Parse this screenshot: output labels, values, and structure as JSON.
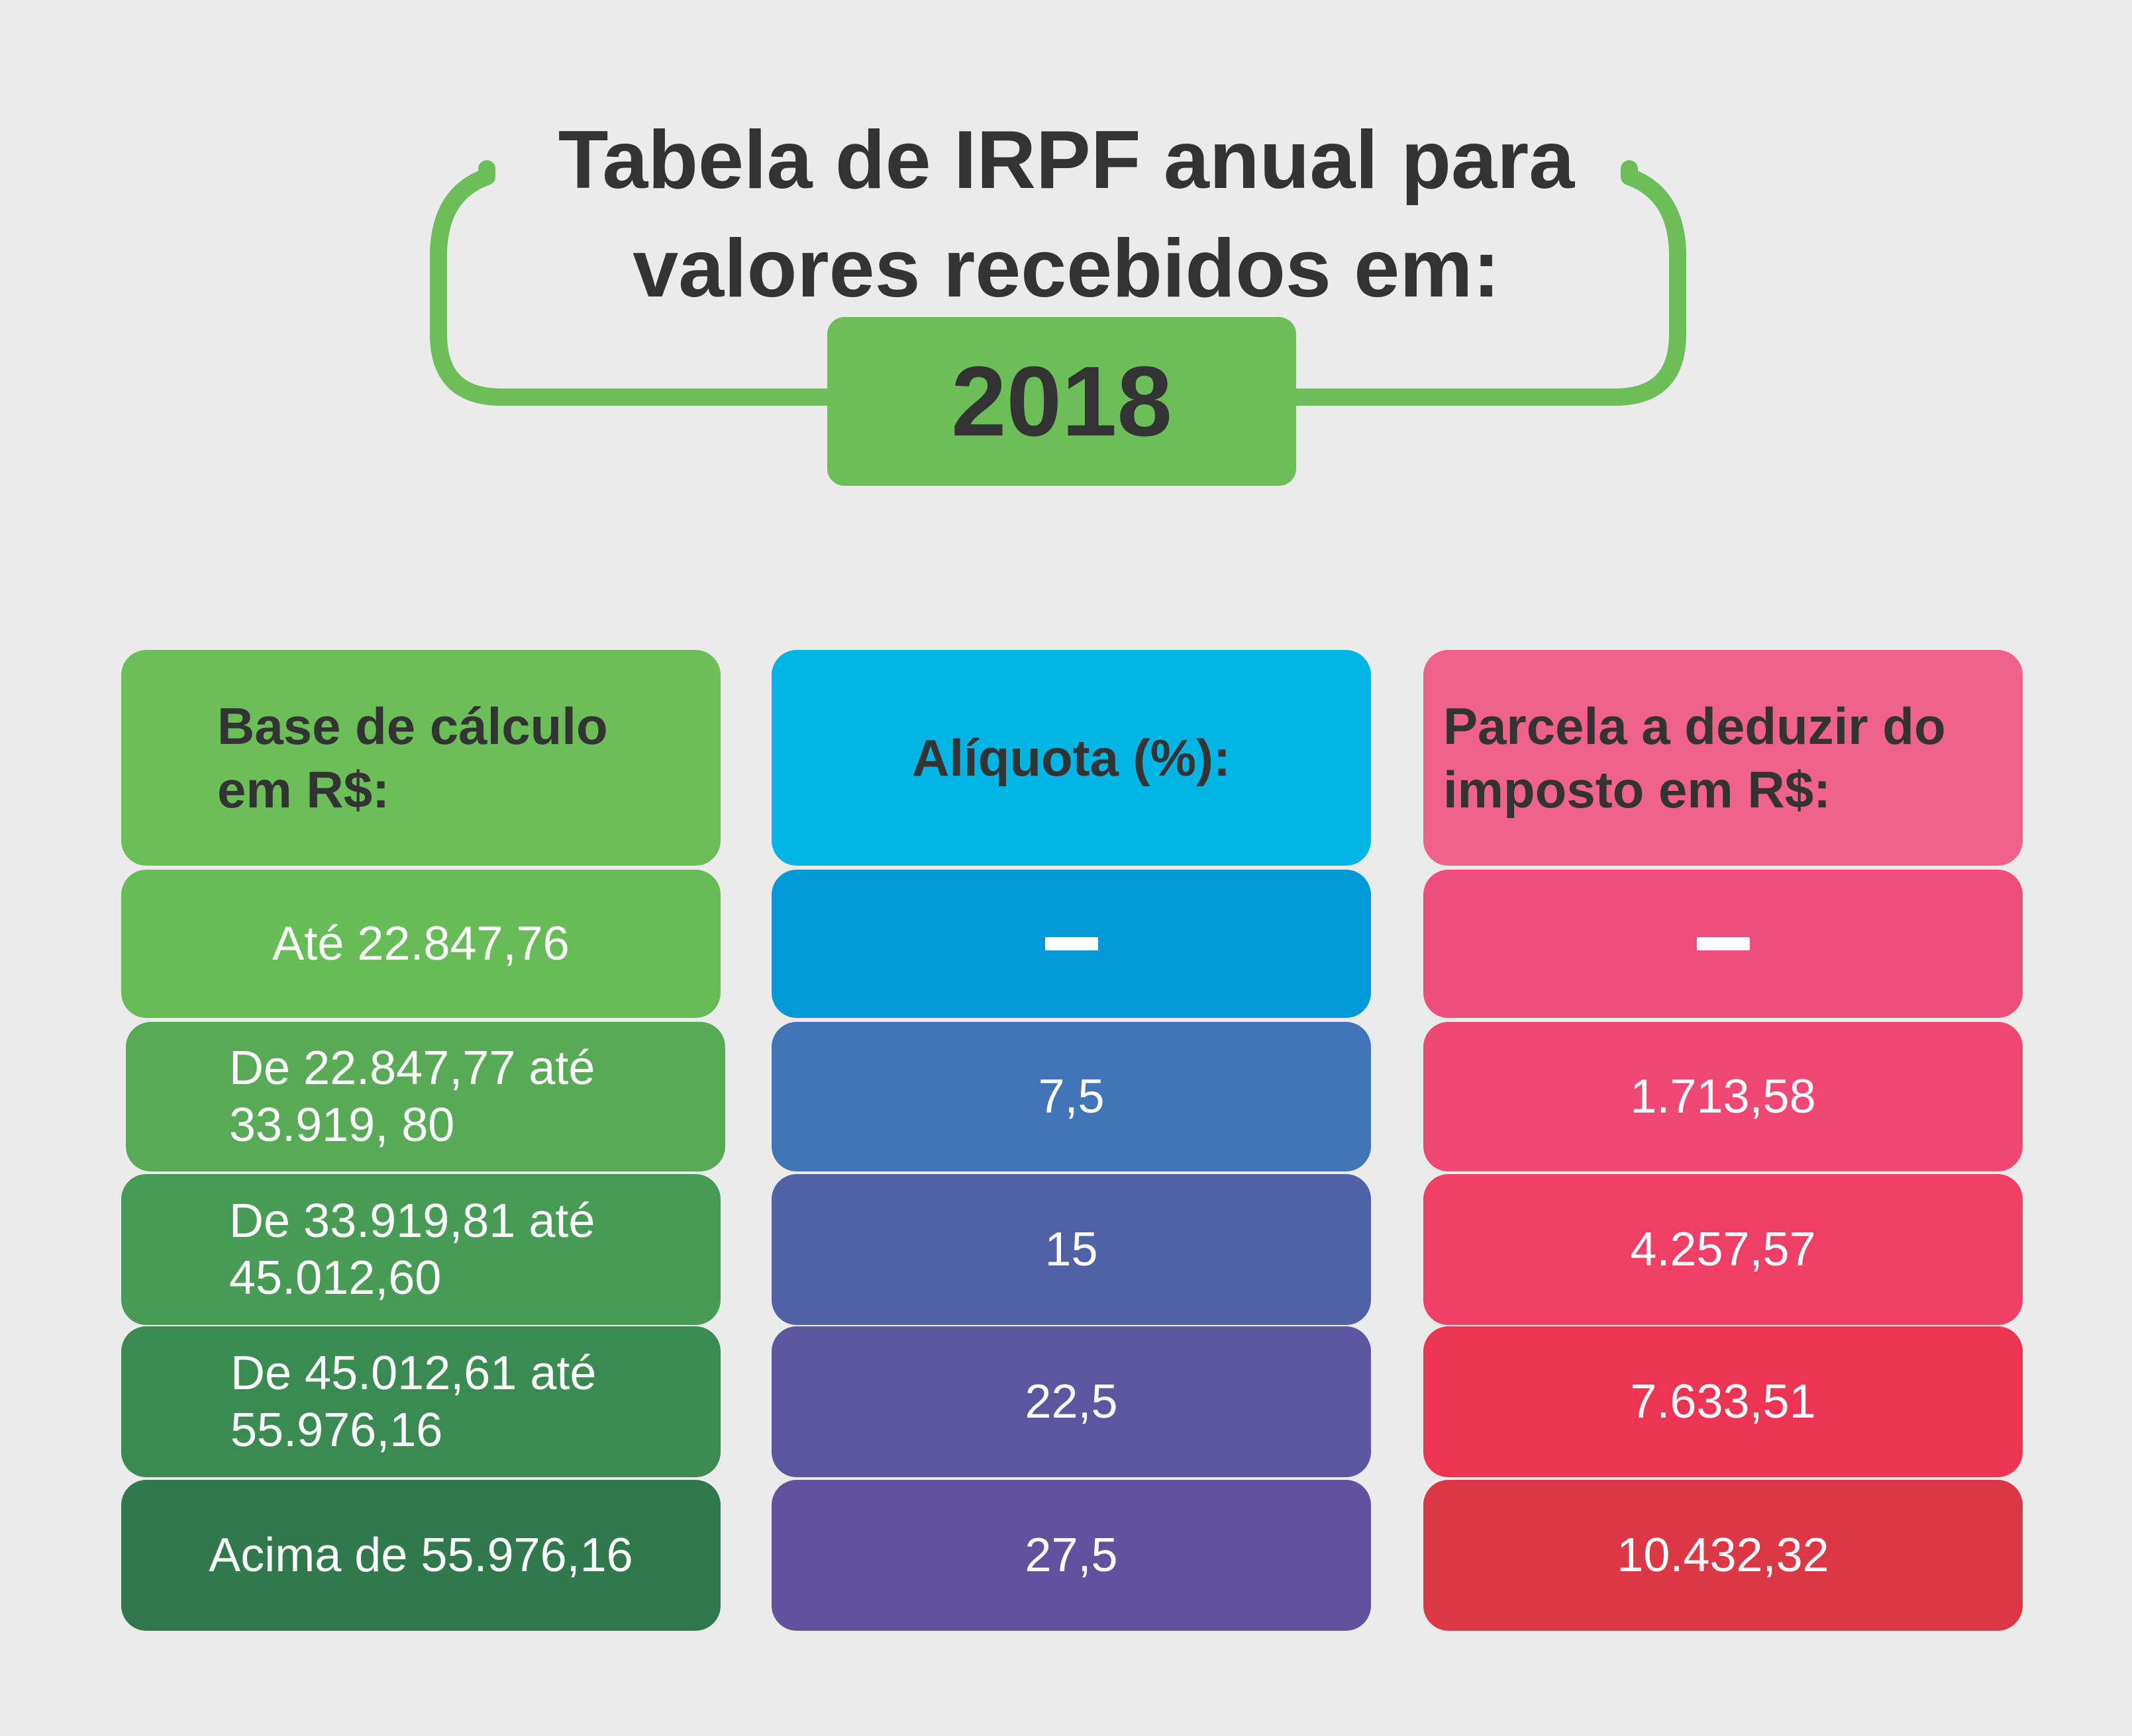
{
  "title": {
    "line1": "Tabela de IRPF anual para",
    "line2": "valores recebidos em:",
    "year": "2018"
  },
  "colors": {
    "background": "#ebebeb",
    "frame_green": "#6bbe58",
    "text_dark": "#333333"
  },
  "columns": [
    {
      "header_line1": "Base de cálculo",
      "header_line2": "em R$:",
      "header_color": "#6bbe58",
      "cells": [
        {
          "line1": "Até 22.847,76",
          "line2": "",
          "color": "#67bc58"
        },
        {
          "line1": "De 22.847,77 até",
          "line2": "33.919, 80",
          "color": "#58aa57"
        },
        {
          "line1": "De 33.919,81 até",
          "line2": "45.012,60",
          "color": "#479b55"
        },
        {
          "line1": "De 45.012,61 até",
          "line2": "55.976,16",
          "color": "#3a8a52"
        },
        {
          "line1": "Acima de 55.976,16",
          "line2": "",
          "color": "#30794d"
        }
      ]
    },
    {
      "header_line1": "Alíquota (%):",
      "header_color": "#00b4e3",
      "cells": [
        {
          "value": "",
          "dash": true,
          "color": "#0098d6"
        },
        {
          "value": "7,5",
          "color": "#4275b8"
        },
        {
          "value": "15",
          "color": "#5061a8"
        },
        {
          "value": "22,5",
          "color": "#5c55a0"
        },
        {
          "value": "27,5",
          "color": "#62519c"
        }
      ]
    },
    {
      "header_line1": "Parcela a deduzir do",
      "header_line2": "imposto em R$:",
      "header_color": "#ef628b",
      "cells": [
        {
          "value": "",
          "dash": true,
          "color": "#ed4e7b"
        },
        {
          "value": "1.713,58",
          "color": "#ef4875"
        },
        {
          "value": "4.257,57",
          "color": "#ef3f65"
        },
        {
          "value": "7.633,51",
          "color": "#ed3553"
        },
        {
          "value": "10.432,32",
          "color": "#dc3745"
        }
      ]
    }
  ]
}
